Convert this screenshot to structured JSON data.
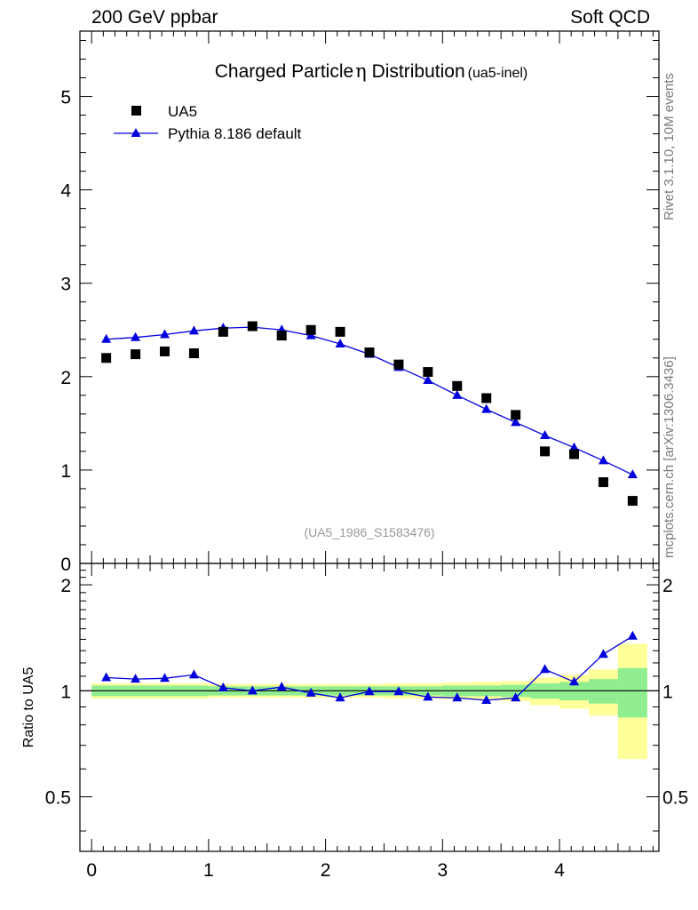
{
  "header": {
    "left": "200 GeV ppbar",
    "right": "Soft QCD"
  },
  "side_labels": {
    "rivet": "Rivet 3.1.10,  10M events",
    "mcplots": "mcplots.cern.ch [arXiv:1306.3436]"
  },
  "chart_data": [
    {
      "type": "scatter",
      "panel": "main",
      "title": "Charged Particle",
      "title_symbol": "η",
      "title_rest": " Distribution",
      "title_tag": "(ua5-inel)",
      "analysis_label": "(UA5_1986_S1583476)",
      "xlabel": "",
      "ylabel": "",
      "xlim": [
        -0.1,
        4.85
      ],
      "ylim": [
        0,
        5.7
      ],
      "yticks": [
        1,
        2,
        3,
        4,
        5
      ],
      "ytick_labels": [
        "1",
        "2",
        "3",
        "4",
        "5"
      ],
      "bottom_tick_label": "0",
      "legend_position": "top-left",
      "series": [
        {
          "name": "UA5",
          "marker": "square",
          "color": "#000000",
          "x": [
            0.125,
            0.375,
            0.625,
            0.875,
            1.125,
            1.375,
            1.625,
            1.875,
            2.125,
            2.375,
            2.625,
            2.875,
            3.125,
            3.375,
            3.625,
            3.875,
            4.125,
            4.375,
            4.625
          ],
          "values": [
            2.2,
            2.24,
            2.27,
            2.25,
            2.48,
            2.54,
            2.44,
            2.5,
            2.48,
            2.26,
            2.13,
            2.05,
            1.9,
            1.77,
            1.59,
            1.2,
            1.17,
            0.87,
            0.67
          ]
        },
        {
          "name": "Pythia 8.186 default",
          "marker": "triangle",
          "color": "#0000dd",
          "x": [
            0.125,
            0.375,
            0.625,
            0.875,
            1.125,
            1.375,
            1.625,
            1.875,
            2.125,
            2.375,
            2.625,
            2.875,
            3.125,
            3.375,
            3.625,
            3.875,
            4.125,
            4.375,
            4.625
          ],
          "values": [
            2.4,
            2.42,
            2.45,
            2.49,
            2.52,
            2.53,
            2.5,
            2.44,
            2.35,
            2.24,
            2.1,
            1.96,
            1.8,
            1.65,
            1.51,
            1.37,
            1.24,
            1.1,
            0.95
          ]
        }
      ]
    },
    {
      "type": "line",
      "panel": "ratio",
      "ylabel": "Ratio to UA5",
      "xlim": [
        -0.1,
        4.85
      ],
      "ylim": [
        0.35,
        2.3
      ],
      "yscale": "log",
      "xticks": [
        0,
        1,
        2,
        3,
        4
      ],
      "xtick_labels": [
        "0",
        "1",
        "2",
        "3",
        "4"
      ],
      "yticks": [
        0.5,
        1,
        2
      ],
      "ytick_labels": [
        "0.5",
        "1",
        "2"
      ],
      "reference_line": 1,
      "bands": {
        "bin_edges": [
          0,
          0.25,
          0.5,
          0.75,
          1.0,
          1.25,
          1.5,
          1.75,
          2.0,
          2.25,
          2.5,
          2.75,
          3.0,
          3.25,
          3.5,
          3.75,
          4.0,
          4.25,
          4.5,
          4.75
        ],
        "green_half_width": [
          0.035,
          0.035,
          0.035,
          0.035,
          0.03,
          0.03,
          0.03,
          0.03,
          0.03,
          0.03,
          0.03,
          0.03,
          0.035,
          0.035,
          0.04,
          0.05,
          0.06,
          0.08,
          0.16
        ],
        "yellow_half_width": [
          0.05,
          0.05,
          0.05,
          0.05,
          0.045,
          0.045,
          0.045,
          0.045,
          0.045,
          0.045,
          0.05,
          0.05,
          0.055,
          0.06,
          0.065,
          0.09,
          0.11,
          0.15,
          0.36
        ],
        "green_color": "#90ee90",
        "yellow_color": "#ffff99"
      },
      "series": [
        {
          "name": "Pythia 8.186 default",
          "marker": "triangle",
          "color": "#0000dd",
          "x": [
            0.125,
            0.375,
            0.625,
            0.875,
            1.125,
            1.375,
            1.625,
            1.875,
            2.125,
            2.375,
            2.625,
            2.875,
            3.125,
            3.375,
            3.625,
            3.875,
            4.125,
            4.375,
            4.625
          ],
          "values": [
            1.09,
            1.08,
            1.085,
            1.11,
            1.02,
            1.0,
            1.025,
            0.985,
            0.955,
            0.995,
            0.995,
            0.96,
            0.955,
            0.94,
            0.955,
            1.15,
            1.06,
            1.27,
            1.43
          ]
        }
      ]
    }
  ]
}
